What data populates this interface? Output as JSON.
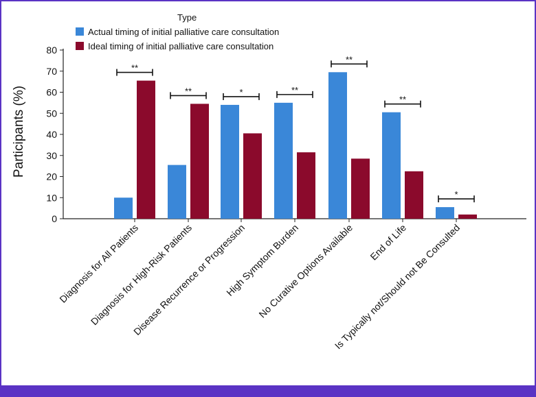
{
  "chart_data": {
    "type": "bar",
    "title": "",
    "xlabel": "",
    "ylabel": "Participants (%)",
    "ylim": [
      0,
      80
    ],
    "yticks": [
      0,
      10,
      20,
      30,
      40,
      50,
      60,
      70,
      80
    ],
    "legend_title": "Type",
    "legend_position": "top-left",
    "categories": [
      "Diagnosis for All Patients",
      "Diagnosis for High-Risk Patients",
      "Disease Recurrence or Progression",
      "High Symptom Burden",
      "No Curative Options Available",
      "End of Life",
      "Is Typically not/Should not Be Consulted"
    ],
    "series": [
      {
        "name": "Actual timing of initial palliative care consultation",
        "color": "#3a87d8",
        "values": [
          10,
          25.5,
          54,
          55,
          69.5,
          50.5,
          5.5
        ]
      },
      {
        "name": "Ideal timing of initial palliative care consultation",
        "color": "#8b0a2c",
        "values": [
          65.5,
          54.5,
          40.5,
          31.5,
          28.5,
          22.5,
          2
        ]
      }
    ],
    "significance": [
      "**",
      "**",
      "*",
      "**",
      "**",
      "**",
      "*"
    ]
  }
}
